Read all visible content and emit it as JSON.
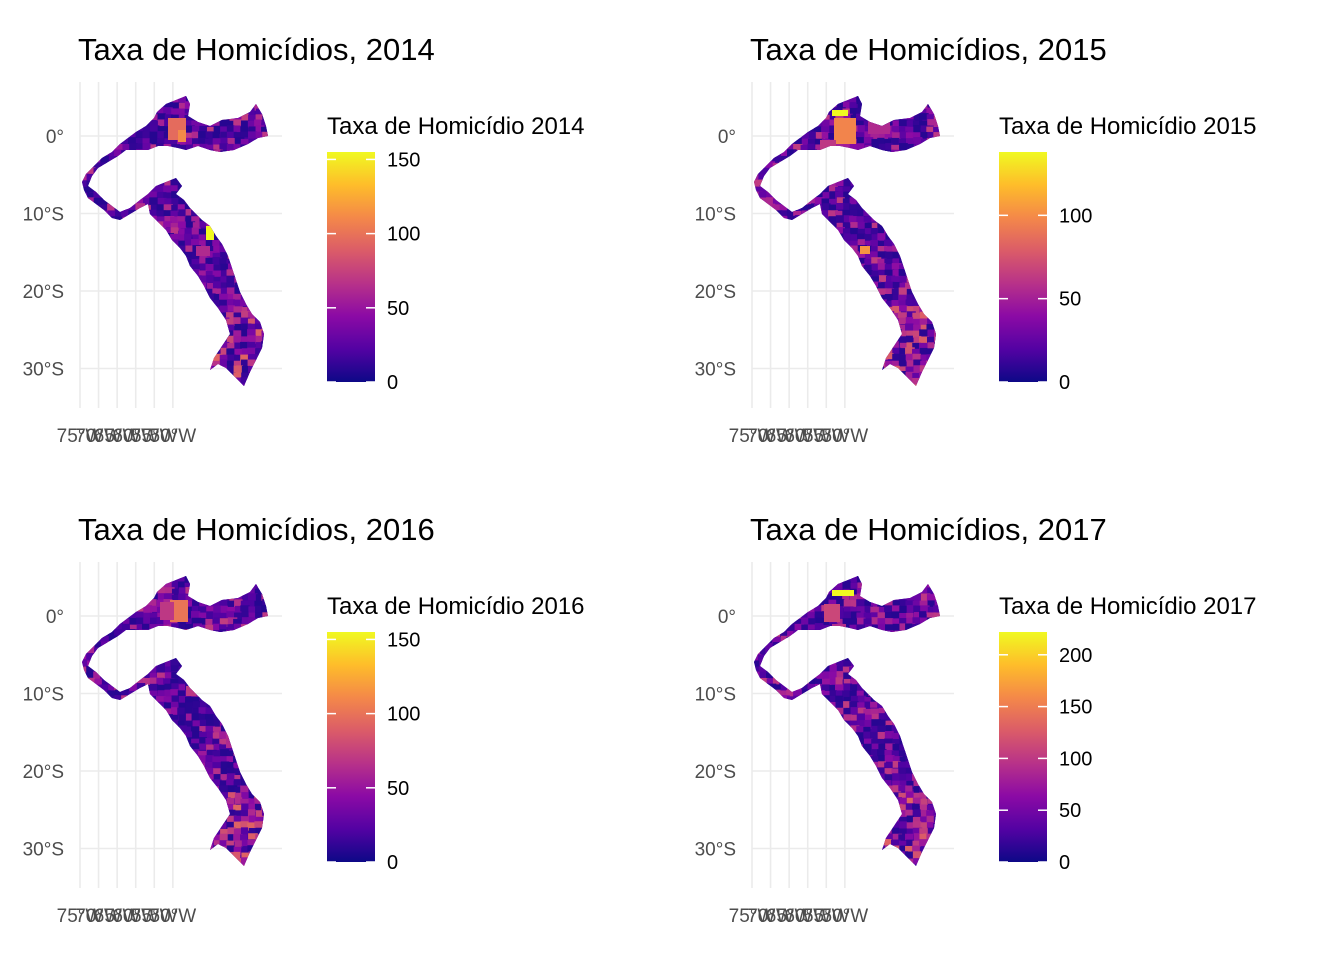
{
  "colorscale": [
    "#0d0887",
    "#5302a3",
    "#8b0aa5",
    "#b83289",
    "#db5c68",
    "#f48849",
    "#febd2a",
    "#f0f921"
  ],
  "axis_labels": {
    "lon": [
      "75°W",
      "70°W",
      "65°W",
      "60°W",
      "55°W",
      "50°W"
    ],
    "lat": [
      "0°",
      "10°S",
      "20°S",
      "30°S"
    ]
  },
  "chart_data": [
    {
      "type": "choropleth",
      "title": "Taxa de Homicídios, 2014",
      "legend_title": "Taxa de Homicídio 2014",
      "legend_ticks": [
        0,
        50,
        100,
        150
      ],
      "range": [
        0,
        155
      ]
    },
    {
      "type": "choropleth",
      "title": "Taxa de Homicídios, 2015",
      "legend_title": "Taxa de Homicídio 2015",
      "legend_ticks": [
        0,
        50,
        100
      ],
      "range": [
        0,
        138
      ]
    },
    {
      "type": "choropleth",
      "title": "Taxa de Homicídios, 2016",
      "legend_title": "Taxa de Homicídio 2016",
      "legend_ticks": [
        0,
        50,
        100,
        150
      ],
      "range": [
        0,
        155
      ]
    },
    {
      "type": "choropleth",
      "title": "Taxa de Homicídios, 2017",
      "legend_title": "Taxa de Homicídio 2017",
      "legend_ticks": [
        0,
        50,
        100,
        150,
        200
      ],
      "range": [
        0,
        222
      ]
    }
  ]
}
